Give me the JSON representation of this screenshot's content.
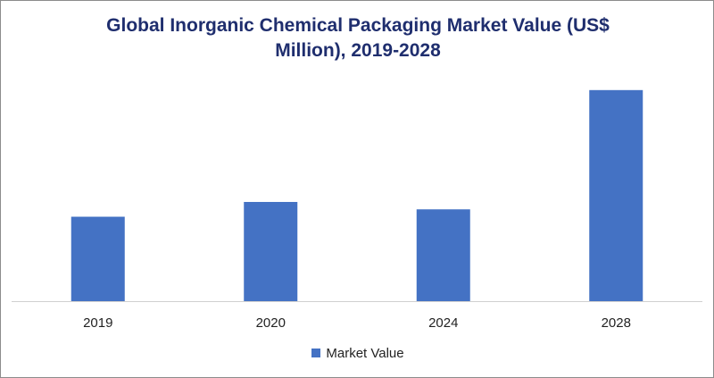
{
  "chart_data": {
    "type": "bar",
    "title_line1": "Global Inorganic Chemical Packaging Market Value (US$",
    "title_line2": "Million), 2019-2028",
    "categories": [
      "2019",
      "2020",
      "2024",
      "2028"
    ],
    "series": [
      {
        "name": "Market Value",
        "values": [
          40,
          47,
          43.5,
          100
        ],
        "color": "#4472c4"
      }
    ],
    "ylim": [
      0,
      105
    ],
    "xlabel": "",
    "ylabel": "",
    "grid": false,
    "legend_position": "bottom"
  }
}
